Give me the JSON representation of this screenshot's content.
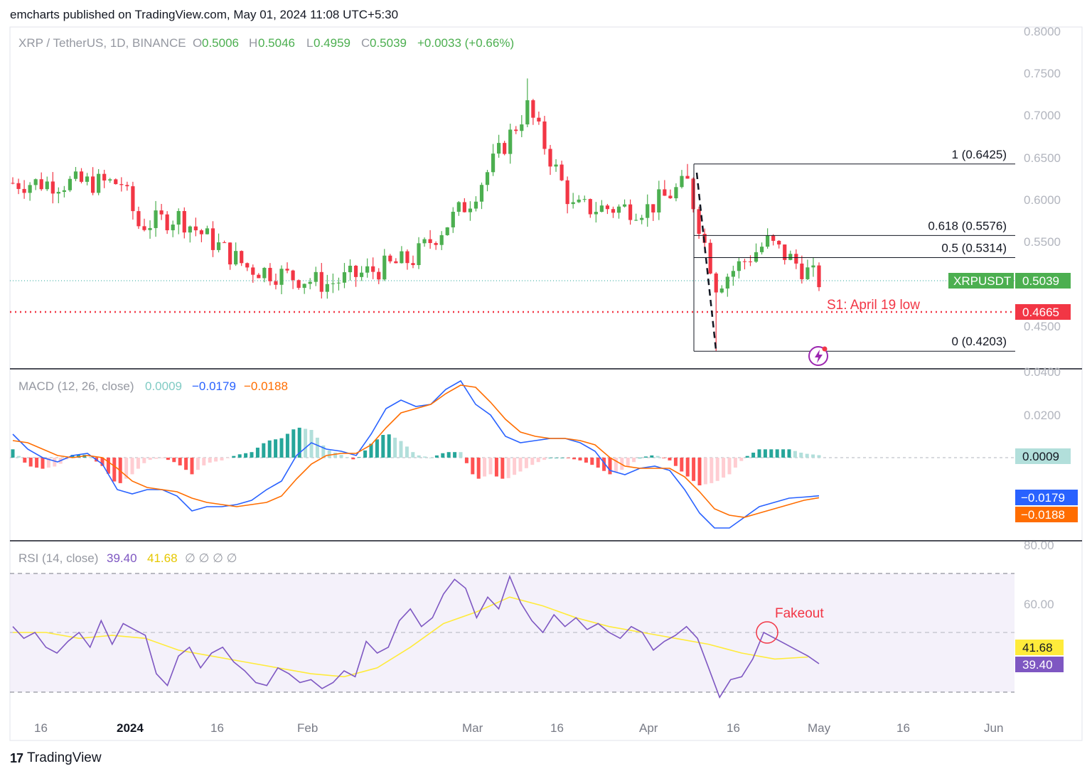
{
  "header": {
    "published": "emcharts published on TradingView.com, May 01, 2024 11:08 UTC+5:30"
  },
  "footer": {
    "logo_mark": "17",
    "logo_text": "TradingView"
  },
  "legend": {
    "symbol": "XRP / TetherUS, 1D, BINANCE",
    "o_label": "O",
    "o": "0.5006",
    "h_label": "H",
    "h": "0.5046",
    "l_label": "L",
    "l": "0.4959",
    "c_label": "C",
    "c": "0.5039",
    "change": "+0.0033 (+0.66%)"
  },
  "colors": {
    "up": "#26a69a",
    "up_candle": "#4caf50",
    "down": "#f23645",
    "macd": "#2962ff",
    "signal": "#ff6d00",
    "hist_up_strong": "#26a69a",
    "hist_up_weak": "#b2dfdb",
    "hist_down_strong": "#ff5252",
    "hist_down_weak": "#ffcdd2",
    "rsi": "#7e57c2",
    "rsi_ma": "#ffeb3b",
    "fib": "#131722",
    "support": "#f23645"
  },
  "chart_data": [
    {
      "type": "candlestick",
      "title": "XRP / TetherUS, 1D, BINANCE",
      "x_axis": {
        "ticks": [
          "16",
          "2024",
          "16",
          "Feb",
          "Mar",
          "16",
          "Apr",
          "16",
          "May",
          "16",
          "Jun"
        ]
      },
      "y_axis": {
        "ticks": [
          "0.8000",
          "0.7500",
          "0.7000",
          "0.6500",
          "0.6000",
          "0.5500",
          "0.4500"
        ],
        "range": [
          0.41,
          0.8
        ]
      },
      "series": [
        {
          "name": "XRPUSDT",
          "start": "2023-12-12",
          "end": "2024-05-01",
          "key_closes": [
            {
              "date": "2023-12-12",
              "value": 0.62
            },
            {
              "date": "2023-12-31",
              "value": 0.62
            },
            {
              "date": "2024-01-03",
              "value": 0.57
            },
            {
              "date": "2024-01-10",
              "value": 0.58
            },
            {
              "date": "2024-01-22",
              "value": 0.52
            },
            {
              "date": "2024-02-05",
              "value": 0.5
            },
            {
              "date": "2024-02-20",
              "value": 0.53
            },
            {
              "date": "2024-03-01",
              "value": 0.6
            },
            {
              "date": "2024-03-11",
              "value": 0.71
            },
            {
              "date": "2024-03-19",
              "value": 0.59
            },
            {
              "date": "2024-04-01",
              "value": 0.59
            },
            {
              "date": "2024-04-08",
              "value": 0.62
            },
            {
              "date": "2024-04-13",
              "value": 0.5
            },
            {
              "date": "2024-04-22",
              "value": 0.55
            },
            {
              "date": "2024-05-01",
              "value": 0.5039
            }
          ],
          "key_lows": [
            {
              "date": "2024-04-13",
              "value": 0.4203
            }
          ],
          "key_highs": [
            {
              "date": "2024-03-11",
              "value": 0.744
            },
            {
              "date": "2024-04-08",
              "value": 0.6425
            }
          ]
        }
      ],
      "price_label": {
        "name": "XRPUSDT",
        "value": "0.5039"
      },
      "support": {
        "label": "S1: April 19 low",
        "value": 0.4665,
        "value_text": "0.4665"
      },
      "fib_levels": [
        {
          "label": "1 (0.6425)",
          "value": 0.6425
        },
        {
          "label": "0.618 (0.5576)",
          "value": 0.5576
        },
        {
          "label": "0.5 (0.5314)",
          "value": 0.5314
        },
        {
          "label": "0 (0.4203)",
          "value": 0.4203
        }
      ]
    },
    {
      "type": "line",
      "title": "MACD (12, 26, close)",
      "legend_values": {
        "hist": "0.0009",
        "macd": "−0.0179",
        "signal": "−0.0188"
      },
      "y_axis": {
        "ticks": [
          "0.0400",
          "0.0200"
        ],
        "range": [
          -0.045,
          0.045
        ]
      },
      "series": [
        {
          "name": "MACD",
          "points": [
            [
              0,
              0.011
            ],
            [
              6,
              0.004
            ],
            [
              12,
              0.0
            ],
            [
              18,
              -0.002
            ],
            [
              24,
              0.001
            ],
            [
              30,
              0.002
            ],
            [
              36,
              -0.003
            ],
            [
              42,
              -0.015
            ],
            [
              48,
              -0.017
            ],
            [
              54,
              -0.015
            ],
            [
              60,
              -0.015
            ],
            [
              66,
              -0.018
            ],
            [
              72,
              -0.025
            ],
            [
              78,
              -0.023
            ],
            [
              84,
              -0.023
            ],
            [
              90,
              -0.022
            ],
            [
              96,
              -0.02
            ],
            [
              102,
              -0.015
            ],
            [
              108,
              -0.011
            ],
            [
              114,
              0.001
            ],
            [
              120,
              0.007
            ],
            [
              126,
              0.004
            ],
            [
              132,
              0.003
            ],
            [
              138,
              0.001
            ],
            [
              144,
              0.011
            ],
            [
              150,
              0.023
            ],
            [
              156,
              0.027
            ],
            [
              162,
              0.024
            ],
            [
              168,
              0.025
            ],
            [
              174,
              0.032
            ],
            [
              180,
              0.036
            ],
            [
              186,
              0.025
            ],
            [
              192,
              0.02
            ],
            [
              198,
              0.01
            ],
            [
              204,
              0.007
            ],
            [
              210,
              0.008
            ],
            [
              216,
              0.009
            ],
            [
              222,
              0.009
            ],
            [
              228,
              0.007
            ],
            [
              234,
              0.003
            ],
            [
              240,
              -0.006
            ],
            [
              246,
              -0.008
            ],
            [
              252,
              -0.005
            ],
            [
              258,
              -0.004
            ],
            [
              264,
              -0.006
            ],
            [
              270,
              -0.015
            ],
            [
              276,
              -0.026
            ],
            [
              282,
              -0.033
            ],
            [
              288,
              -0.033
            ],
            [
              294,
              -0.028
            ],
            [
              300,
              -0.023
            ],
            [
              306,
              -0.021
            ],
            [
              312,
              -0.019
            ],
            [
              318,
              -0.0185
            ],
            [
              324,
              -0.0179
            ]
          ]
        },
        {
          "name": "Signal",
          "points": [
            [
              0,
              0.008
            ],
            [
              6,
              0.007
            ],
            [
              12,
              0.004
            ],
            [
              18,
              0.001
            ],
            [
              24,
              0.0
            ],
            [
              30,
              0.001
            ],
            [
              36,
              0.0
            ],
            [
              42,
              -0.005
            ],
            [
              48,
              -0.011
            ],
            [
              54,
              -0.014
            ],
            [
              60,
              -0.015
            ],
            [
              66,
              -0.016
            ],
            [
              72,
              -0.019
            ],
            [
              78,
              -0.021
            ],
            [
              84,
              -0.022
            ],
            [
              90,
              -0.023
            ],
            [
              96,
              -0.022
            ],
            [
              102,
              -0.021
            ],
            [
              108,
              -0.018
            ],
            [
              114,
              -0.01
            ],
            [
              120,
              -0.003
            ],
            [
              126,
              0.001
            ],
            [
              132,
              0.002
            ],
            [
              138,
              0.002
            ],
            [
              144,
              0.006
            ],
            [
              150,
              0.014
            ],
            [
              156,
              0.021
            ],
            [
              162,
              0.023
            ],
            [
              168,
              0.025
            ],
            [
              174,
              0.03
            ],
            [
              180,
              0.034
            ],
            [
              186,
              0.033
            ],
            [
              192,
              0.026
            ],
            [
              198,
              0.018
            ],
            [
              204,
              0.012
            ],
            [
              210,
              0.01
            ],
            [
              216,
              0.009
            ],
            [
              222,
              0.009
            ],
            [
              228,
              0.008
            ],
            [
              234,
              0.006
            ],
            [
              240,
              0.0
            ],
            [
              246,
              -0.004
            ],
            [
              252,
              -0.005
            ],
            [
              258,
              -0.005
            ],
            [
              264,
              -0.005
            ],
            [
              270,
              -0.009
            ],
            [
              276,
              -0.016
            ],
            [
              282,
              -0.024
            ],
            [
              288,
              -0.027
            ],
            [
              294,
              -0.028
            ],
            [
              300,
              -0.026
            ],
            [
              306,
              -0.024
            ],
            [
              312,
              -0.022
            ],
            [
              318,
              -0.02
            ],
            [
              324,
              -0.0188
            ]
          ]
        }
      ]
    },
    {
      "type": "line",
      "title": "RSI (14, close)",
      "legend_values": {
        "rsi": "39.40",
        "ma": "41.68",
        "extra": "∅ ∅ ∅ ∅"
      },
      "y_axis": {
        "ticks": [
          "80.00",
          "60.00"
        ],
        "range": [
          18,
          80
        ],
        "bands": [
          70,
          50,
          30
        ]
      },
      "series": [
        {
          "name": "RSI",
          "points": [
            [
              0,
              52
            ],
            [
              4,
              48
            ],
            [
              8,
              50
            ],
            [
              12,
              45
            ],
            [
              16,
              43
            ],
            [
              20,
              47
            ],
            [
              24,
              50
            ],
            [
              28,
              45
            ],
            [
              32,
              54
            ],
            [
              36,
              46
            ],
            [
              40,
              53
            ],
            [
              44,
              51
            ],
            [
              48,
              49
            ],
            [
              52,
              36
            ],
            [
              56,
              32
            ],
            [
              60,
              42
            ],
            [
              64,
              45
            ],
            [
              68,
              38
            ],
            [
              72,
              43
            ],
            [
              76,
              45
            ],
            [
              80,
              40
            ],
            [
              84,
              37
            ],
            [
              88,
              33
            ],
            [
              92,
              32
            ],
            [
              96,
              38
            ],
            [
              100,
              36
            ],
            [
              104,
              33
            ],
            [
              108,
              34
            ],
            [
              112,
              31
            ],
            [
              116,
              33
            ],
            [
              120,
              37
            ],
            [
              124,
              35
            ],
            [
              128,
              47
            ],
            [
              132,
              43
            ],
            [
              136,
              45
            ],
            [
              140,
              54
            ],
            [
              144,
              58
            ],
            [
              148,
              52
            ],
            [
              152,
              55
            ],
            [
              156,
              63
            ],
            [
              160,
              68
            ],
            [
              164,
              65
            ],
            [
              168,
              55
            ],
            [
              172,
              62
            ],
            [
              176,
              58
            ],
            [
              180,
              69
            ],
            [
              184,
              60
            ],
            [
              188,
              54
            ],
            [
              192,
              50
            ],
            [
              196,
              56
            ],
            [
              200,
              52
            ],
            [
              204,
              55
            ],
            [
              208,
              51
            ],
            [
              212,
              53
            ],
            [
              216,
              50
            ],
            [
              220,
              48
            ],
            [
              224,
              52
            ],
            [
              228,
              50
            ],
            [
              232,
              44
            ],
            [
              236,
              47
            ],
            [
              240,
              49
            ],
            [
              244,
              52
            ],
            [
              248,
              48
            ],
            [
              252,
              38
            ],
            [
              256,
              28
            ],
            [
              260,
              34
            ],
            [
              264,
              35
            ],
            [
              268,
              41
            ],
            [
              272,
              50
            ],
            [
              276,
              48
            ],
            [
              280,
              46
            ],
            [
              284,
              44
            ],
            [
              288,
              42
            ],
            [
              292,
              39.4
            ]
          ]
        },
        {
          "name": "RSI-based MA",
          "points": [
            [
              0,
              50
            ],
            [
              12,
              50
            ],
            [
              24,
              48
            ],
            [
              36,
              49
            ],
            [
              48,
              48
            ],
            [
              60,
              44
            ],
            [
              72,
              42
            ],
            [
              84,
              40
            ],
            [
              96,
              38
            ],
            [
              108,
              36
            ],
            [
              120,
              35
            ],
            [
              132,
              38
            ],
            [
              144,
              45
            ],
            [
              156,
              53
            ],
            [
              168,
              57
            ],
            [
              180,
              62
            ],
            [
              192,
              59
            ],
            [
              204,
              55
            ],
            [
              216,
              52
            ],
            [
              228,
              50
            ],
            [
              240,
              48
            ],
            [
              252,
              46
            ],
            [
              264,
              43
            ],
            [
              276,
              41
            ],
            [
              288,
              41.68
            ]
          ]
        }
      ],
      "annotation": "Fakeout"
    }
  ],
  "axis_labels": {
    "price": [
      "0.8000",
      "0.7500",
      "0.7000",
      "0.6500",
      "0.6000",
      "0.5500",
      "0.4500"
    ],
    "macd": [
      "0.0400",
      "0.0200"
    ],
    "rsi": [
      "80.00",
      "60.00"
    ],
    "time": [
      "16",
      "2024",
      "16",
      "Feb",
      "Mar",
      "16",
      "Apr",
      "16",
      "May",
      "16",
      "Jun"
    ]
  }
}
